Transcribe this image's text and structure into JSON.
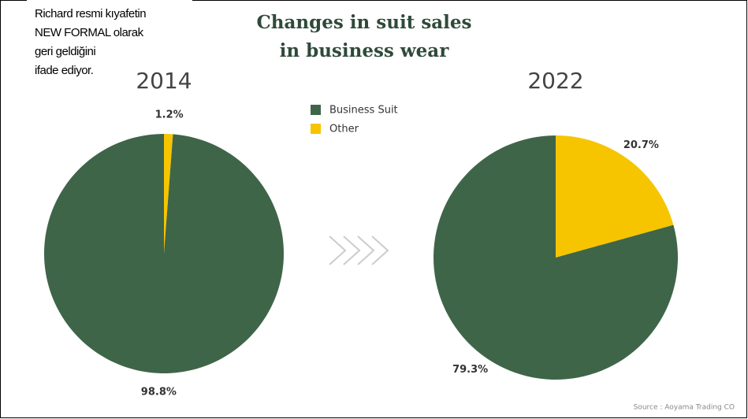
{
  "title": "Changes in suit sales in business wear",
  "annotation": [
    "Richard resmi kıyafetin",
    "NEW FORMAL olarak",
    "geri geldiğini",
    "ifade ediyor."
  ],
  "source": "Source : Aoyama Trading CO",
  "chart_data": [
    {
      "type": "pie",
      "title": "2014",
      "categories": [
        "Business Suit",
        "Other"
      ],
      "values": [
        98.8,
        1.2
      ],
      "value_labels": [
        "98.8%",
        "1.2%"
      ],
      "colors": [
        "#3f6549",
        "#f6c500"
      ]
    },
    {
      "type": "pie",
      "title": "2022",
      "categories": [
        "Business Suit",
        "Other"
      ],
      "values": [
        79.3,
        20.7
      ],
      "value_labels": [
        "79.3%",
        "20.7%"
      ],
      "colors": [
        "#3f6549",
        "#f6c500"
      ]
    }
  ]
}
